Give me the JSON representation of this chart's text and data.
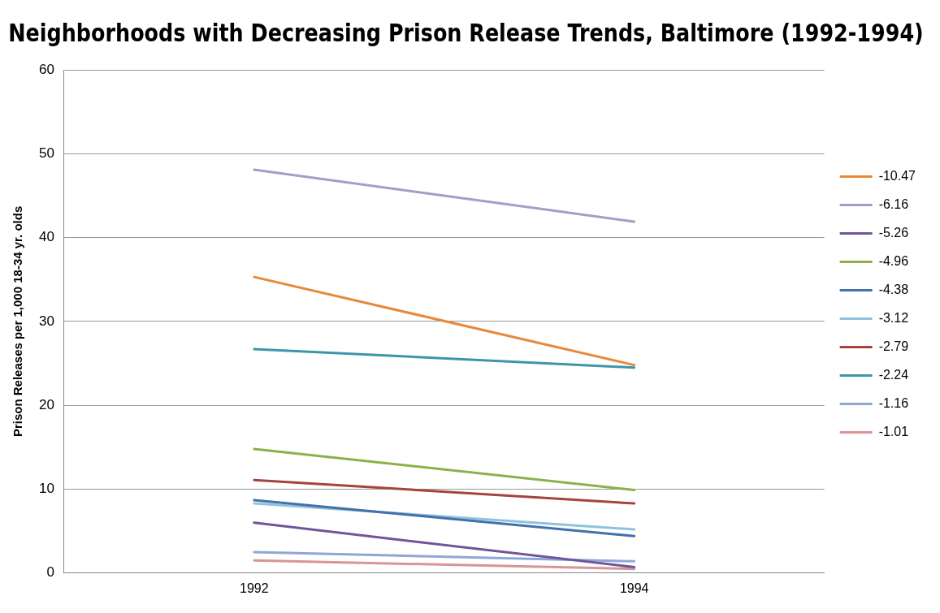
{
  "chart_data": {
    "type": "line",
    "title": "Neighborhoods with Decreasing Prison Release Trends, Baltimore (1992-1994)",
    "ylabel": "Prison Releases per 1,000 18-34 yr. olds",
    "categories": [
      "1992",
      "1994"
    ],
    "ylim": [
      0,
      60
    ],
    "yticks": [
      0,
      10,
      20,
      30,
      40,
      50,
      60
    ],
    "grid": "y",
    "legend": "right",
    "marker": "none",
    "series": [
      {
        "name": "-10.47",
        "color": "#e6893a",
        "values": [
          35.3,
          24.8
        ]
      },
      {
        "name": "-6.16",
        "color": "#a99bc9",
        "values": [
          48.1,
          41.9
        ]
      },
      {
        "name": "-5.26",
        "color": "#71559a",
        "values": [
          6.0,
          0.7
        ]
      },
      {
        "name": "-4.96",
        "color": "#8db04d",
        "values": [
          14.8,
          9.9
        ]
      },
      {
        "name": "-4.38",
        "color": "#4270aa",
        "values": [
          8.7,
          4.4
        ]
      },
      {
        "name": "-3.12",
        "color": "#8fc3dc",
        "values": [
          8.3,
          5.2
        ]
      },
      {
        "name": "-2.79",
        "color": "#a6433f",
        "values": [
          11.1,
          8.3
        ]
      },
      {
        "name": "-2.24",
        "color": "#3d95a9",
        "values": [
          26.7,
          24.5
        ]
      },
      {
        "name": "-1.16",
        "color": "#8ea7d6",
        "values": [
          2.5,
          1.4
        ]
      },
      {
        "name": "-1.01",
        "color": "#d99593",
        "values": [
          1.5,
          0.5
        ]
      }
    ]
  }
}
